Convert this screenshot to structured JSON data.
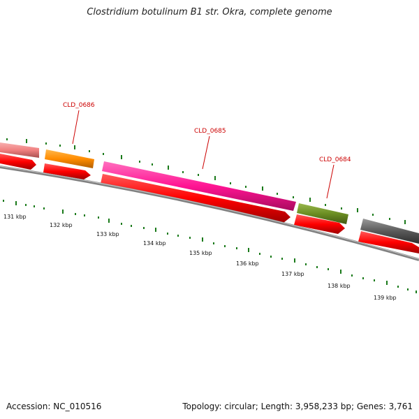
{
  "title": "Clostridium botulinum B1 str. Okra, complete genome",
  "footer": {
    "accession": "Accession: NC_010516",
    "summary": "Topology: circular; Length: 3,958,233 bp; Genes: 3,761"
  },
  "coordinate_labels": [
    "131 kbp",
    "132 kbp",
    "133 kbp",
    "134 kbp",
    "135 kbp",
    "136 kbp",
    "137 kbp",
    "138 kbp",
    "139 kbp"
  ],
  "gene_labels": [
    "CLD_0686",
    "CLD_0685",
    "CLD_0684"
  ],
  "colors": {
    "backbone": "#808080",
    "cds": "#ff0000",
    "gene_label": "#cc0000",
    "tick": "#1a7a1a",
    "gene_salmon": "#f08080",
    "gene_orange": "#ff8c00",
    "gene_pink": "#ff1493",
    "gene_olive": "#6b8e23",
    "gene_gray": "#5a5a5a"
  }
}
